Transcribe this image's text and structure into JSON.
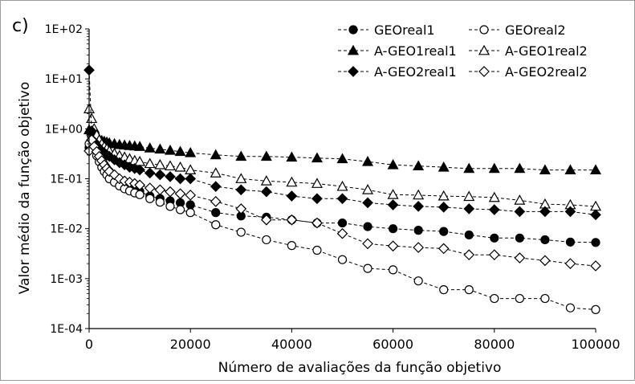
{
  "panel_label": "c)",
  "chart_data": {
    "type": "line",
    "xlabel": "Número de avaliações da função objetivo",
    "ylabel": "Valor médio da função objetivo",
    "xlim": [
      0,
      100000
    ],
    "ylim": [
      0.0001,
      100
    ],
    "yscale": "log",
    "xticks": [
      0,
      20000,
      40000,
      60000,
      80000,
      100000
    ],
    "xtick_labels": [
      "0",
      "20000",
      "40000",
      "60000",
      "80000",
      "100000"
    ],
    "ytick_labels": [
      "1E-04",
      "1E-03",
      "1E-02",
      "1E-01",
      "1E+00",
      "1E+01",
      "1E+02"
    ],
    "grid": false,
    "legend_position": "top-right",
    "series": [
      {
        "name": "GEOreal1",
        "marker": "circle-filled",
        "x": [
          0,
          500,
          1000,
          1500,
          2000,
          2500,
          3000,
          3500,
          4000,
          5000,
          6000,
          7000,
          8000,
          9000,
          10000,
          12000,
          14000,
          16000,
          18000,
          20000,
          25000,
          30000,
          35000,
          40000,
          45000,
          50000,
          55000,
          60000,
          65000,
          70000,
          75000,
          80000,
          85000,
          90000,
          95000,
          100000
        ],
        "y": [
          0.42,
          0.58,
          0.45,
          0.36,
          0.3,
          0.24,
          0.19,
          0.16,
          0.14,
          0.11,
          0.092,
          0.08,
          0.07,
          0.063,
          0.056,
          0.045,
          0.04,
          0.036,
          0.033,
          0.03,
          0.021,
          0.018,
          0.017,
          0.015,
          0.013,
          0.013,
          0.011,
          0.01,
          0.0093,
          0.0088,
          0.0075,
          0.0065,
          0.0065,
          0.006,
          0.0054,
          0.0053
        ]
      },
      {
        "name": "GEOreal2",
        "marker": "circle-open",
        "x": [
          0,
          500,
          1000,
          1500,
          2000,
          2500,
          3000,
          3500,
          4000,
          5000,
          6000,
          7000,
          8000,
          9000,
          10000,
          12000,
          14000,
          16000,
          18000,
          20000,
          25000,
          30000,
          35000,
          40000,
          45000,
          50000,
          55000,
          60000,
          65000,
          70000,
          75000,
          80000,
          85000,
          90000,
          95000,
          100000
        ],
        "y": [
          0.5,
          0.7,
          0.4,
          0.29,
          0.22,
          0.17,
          0.14,
          0.12,
          0.1,
          0.085,
          0.072,
          0.063,
          0.057,
          0.052,
          0.048,
          0.04,
          0.034,
          0.028,
          0.024,
          0.021,
          0.012,
          0.0085,
          0.006,
          0.0046,
          0.0037,
          0.0024,
          0.0016,
          0.0015,
          0.0009,
          0.0006,
          0.0006,
          0.0004,
          0.0004,
          0.0004,
          0.00026,
          0.00024
        ]
      },
      {
        "name": "A-GEO1real1",
        "marker": "triangle-filled",
        "x": [
          0,
          500,
          1000,
          1500,
          2000,
          2500,
          3000,
          3500,
          4000,
          5000,
          6000,
          7000,
          8000,
          9000,
          10000,
          12000,
          14000,
          16000,
          18000,
          20000,
          25000,
          30000,
          35000,
          40000,
          45000,
          50000,
          55000,
          60000,
          65000,
          70000,
          75000,
          80000,
          85000,
          90000,
          95000,
          100000
        ],
        "y": [
          0.95,
          0.9,
          0.8,
          0.7,
          0.62,
          0.58,
          0.56,
          0.54,
          0.52,
          0.5,
          0.48,
          0.47,
          0.46,
          0.45,
          0.44,
          0.41,
          0.39,
          0.37,
          0.35,
          0.33,
          0.3,
          0.28,
          0.28,
          0.27,
          0.26,
          0.25,
          0.22,
          0.19,
          0.18,
          0.17,
          0.16,
          0.16,
          0.16,
          0.15,
          0.15,
          0.15
        ]
      },
      {
        "name": "A-GEO1real2",
        "marker": "triangle-open",
        "x": [
          0,
          500,
          1000,
          1500,
          2000,
          2500,
          3000,
          3500,
          4000,
          5000,
          6000,
          7000,
          8000,
          9000,
          10000,
          12000,
          14000,
          16000,
          18000,
          20000,
          25000,
          30000,
          35000,
          40000,
          45000,
          50000,
          55000,
          60000,
          65000,
          70000,
          75000,
          80000,
          85000,
          90000,
          95000,
          100000
        ],
        "y": [
          2.5,
          1.6,
          1.0,
          0.75,
          0.6,
          0.5,
          0.44,
          0.4,
          0.36,
          0.32,
          0.29,
          0.27,
          0.25,
          0.23,
          0.22,
          0.2,
          0.19,
          0.18,
          0.17,
          0.15,
          0.13,
          0.1,
          0.09,
          0.085,
          0.08,
          0.07,
          0.06,
          0.048,
          0.047,
          0.045,
          0.044,
          0.042,
          0.037,
          0.031,
          0.03,
          0.028
        ]
      },
      {
        "name": "A-GEO2real1",
        "marker": "diamond-filled",
        "x": [
          0,
          500,
          1000,
          1500,
          2000,
          2500,
          3000,
          3500,
          4000,
          5000,
          6000,
          7000,
          8000,
          9000,
          10000,
          12000,
          14000,
          16000,
          18000,
          20000,
          25000,
          30000,
          35000,
          40000,
          45000,
          50000,
          55000,
          60000,
          65000,
          70000,
          75000,
          80000,
          85000,
          90000,
          95000,
          100000
        ],
        "y": [
          15.0,
          0.9,
          0.55,
          0.46,
          0.4,
          0.36,
          0.33,
          0.3,
          0.28,
          0.24,
          0.21,
          0.19,
          0.17,
          0.16,
          0.15,
          0.13,
          0.12,
          0.11,
          0.1,
          0.1,
          0.07,
          0.06,
          0.055,
          0.045,
          0.04,
          0.04,
          0.033,
          0.03,
          0.028,
          0.027,
          0.025,
          0.024,
          0.022,
          0.022,
          0.022,
          0.019
        ]
      },
      {
        "name": "A-GEO2real2",
        "marker": "diamond-open",
        "x": [
          0,
          500,
          1000,
          1500,
          2000,
          2500,
          3000,
          3500,
          4000,
          5000,
          6000,
          7000,
          8000,
          9000,
          10000,
          12000,
          14000,
          16000,
          18000,
          20000,
          25000,
          30000,
          35000,
          40000,
          45000,
          50000,
          55000,
          60000,
          65000,
          70000,
          75000,
          80000,
          85000,
          90000,
          95000,
          100000
        ],
        "y": [
          0.36,
          0.6,
          0.44,
          0.35,
          0.28,
          0.23,
          0.19,
          0.16,
          0.14,
          0.12,
          0.1,
          0.09,
          0.085,
          0.08,
          0.075,
          0.065,
          0.06,
          0.055,
          0.05,
          0.047,
          0.035,
          0.025,
          0.015,
          0.015,
          0.013,
          0.008,
          0.005,
          0.0045,
          0.0042,
          0.004,
          0.003,
          0.003,
          0.0026,
          0.0023,
          0.002,
          0.0018
        ]
      }
    ]
  }
}
